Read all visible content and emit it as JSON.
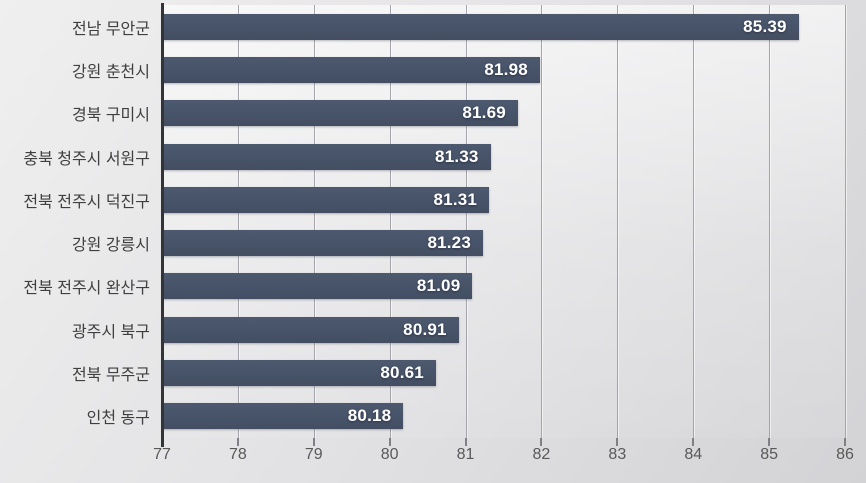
{
  "chart_data": {
    "type": "bar",
    "orientation": "horizontal",
    "title": "",
    "xlabel": "",
    "ylabel": "",
    "categories": [
      "전남 무안군",
      "강원 춘천시",
      "경북 구미시",
      "충북 청주시 서원구",
      "전북 전주시 덕진구",
      "강원 강릉시",
      "전북 전주시 완산구",
      "광주시 북구",
      "전북 무주군",
      "인천 동구"
    ],
    "values": [
      85.39,
      81.98,
      81.69,
      81.33,
      81.31,
      81.23,
      81.09,
      80.91,
      80.61,
      80.18
    ],
    "value_labels": [
      "85.39",
      "81.98",
      "81.69",
      "81.33",
      "81.31",
      "81.23",
      "81.09",
      "80.91",
      "80.61",
      "80.18"
    ],
    "xlim": [
      77,
      86
    ],
    "x_ticks": [
      77,
      78,
      79,
      80,
      81,
      82,
      83,
      84,
      85,
      86
    ],
    "grid": "vertical",
    "legend": "none",
    "value_labels_position": "inside-end",
    "colors": {
      "bar": "#475368",
      "value_label": "#ffffff",
      "category_label": "#3f3f3f",
      "axis_tick_label": "#595959",
      "gridline": "#a4a4aa",
      "axis_line": "#333438",
      "background_start": "#efefef",
      "background_end": "#d3d3d6"
    }
  }
}
